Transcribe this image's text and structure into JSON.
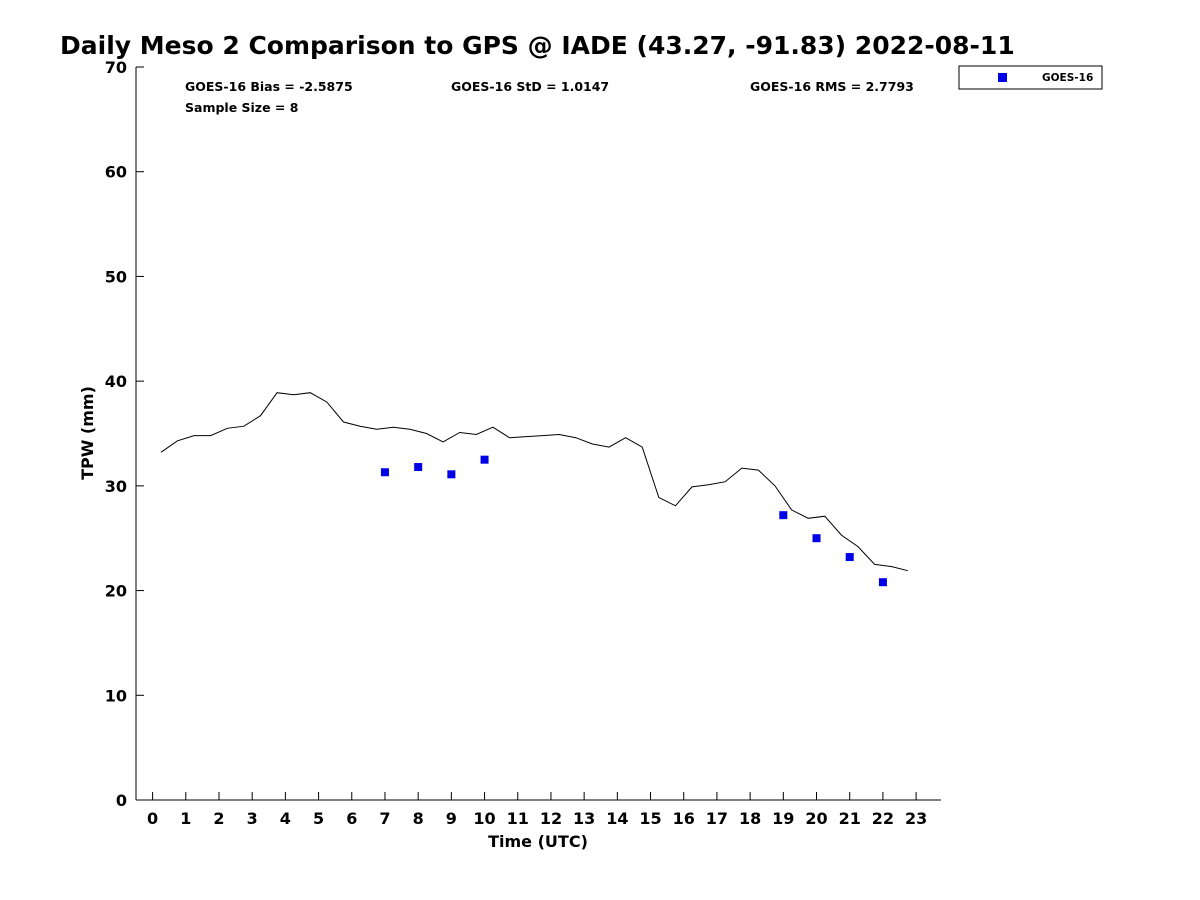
{
  "chart_data": {
    "type": "scatter",
    "title": "Daily Meso 2 Comparison to GPS @ IADE (43.27, -91.83) 2022-08-11",
    "xlabel": "Time (UTC)",
    "ylabel": "TPW (mm)",
    "xlim": [
      -0.5,
      23.75
    ],
    "ylim": [
      0,
      70
    ],
    "x_ticks": [
      0,
      1,
      2,
      3,
      4,
      5,
      6,
      7,
      8,
      9,
      10,
      11,
      12,
      13,
      14,
      15,
      16,
      17,
      18,
      19,
      20,
      21,
      22,
      23
    ],
    "y_ticks": [
      0,
      10,
      20,
      30,
      40,
      50,
      60,
      70
    ],
    "grid": false,
    "legend_position": "top-right",
    "stats": {
      "bias": "GOES-16 Bias = -2.5875",
      "std": "GOES-16 StD = 1.0147",
      "rms": "GOES-16 RMS = 2.7793",
      "sample": "Sample Size = 8"
    },
    "series": [
      {
        "name": "GOES-16",
        "kind": "scatter",
        "marker": "square",
        "color": "#0000e6",
        "x": [
          7,
          8,
          9,
          10,
          19,
          20,
          21,
          22
        ],
        "y": [
          31.3,
          31.8,
          31.1,
          32.5,
          27.2,
          25.0,
          23.2,
          20.8
        ]
      },
      {
        "kind": "line",
        "color": "#000000",
        "x": [
          0.25,
          0.75,
          1.25,
          1.75,
          2.25,
          2.75,
          3.25,
          3.75,
          4.25,
          4.75,
          5.25,
          5.75,
          6.25,
          6.75,
          7.25,
          7.75,
          8.25,
          8.75,
          9.25,
          9.75,
          10.25,
          10.75,
          11.25,
          11.75,
          12.25,
          12.75,
          13.25,
          13.75,
          14.25,
          14.75,
          15.25,
          15.75,
          16.25,
          16.75,
          17.25,
          17.75,
          18.25,
          18.75,
          19.25,
          19.75,
          20.25,
          20.75,
          21.25,
          21.75,
          22.25,
          22.75
        ],
        "y": [
          33.2,
          34.3,
          34.8,
          34.8,
          35.5,
          35.7,
          36.7,
          38.9,
          38.7,
          38.9,
          38.0,
          36.1,
          35.7,
          35.4,
          35.6,
          35.4,
          35.0,
          34.2,
          35.1,
          34.9,
          35.6,
          34.6,
          34.7,
          34.8,
          34.9,
          34.6,
          34.0,
          33.7,
          34.6,
          33.7,
          28.9,
          28.1,
          29.9,
          30.1,
          30.4,
          31.7,
          31.5,
          30.0,
          27.7,
          26.9,
          27.1,
          25.3,
          24.2,
          22.5,
          22.3,
          21.9
        ]
      }
    ]
  }
}
